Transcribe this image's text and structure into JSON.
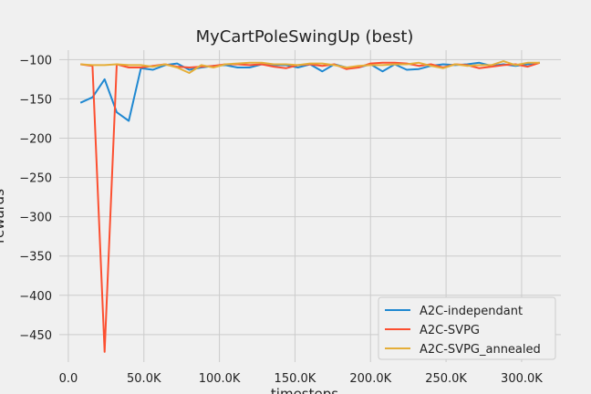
{
  "chart_data": {
    "type": "line",
    "title": "MyCartPoleSwingUp (best)",
    "xlabel": "timesteps",
    "ylabel": "rewards",
    "xlim": [
      -6000,
      326000
    ],
    "ylim": [
      -485,
      -88
    ],
    "xticks": [
      0,
      50000,
      100000,
      150000,
      200000,
      250000,
      300000
    ],
    "xtick_labels": [
      "0.0",
      "50.0K",
      "100.0K",
      "150.0K",
      "200.0K",
      "250.0K",
      "300.0K"
    ],
    "yticks": [
      -100,
      -150,
      -200,
      -250,
      -300,
      -350,
      -400,
      -450
    ],
    "ytick_labels": [
      "−100",
      "−150",
      "−200",
      "−250",
      "−300",
      "−350",
      "−400",
      "−450"
    ],
    "grid": true,
    "legend_position": "bottom-right",
    "series": [
      {
        "name": "A2C-independant",
        "color": "#1f88d1",
        "x": [
          8000,
          16000,
          24000,
          32000,
          40000,
          48000,
          56000,
          64000,
          72000,
          80000,
          88000,
          96000,
          104000,
          112000,
          120000,
          128000,
          136000,
          144000,
          152000,
          160000,
          168000,
          176000,
          184000,
          192000,
          200000,
          208000,
          216000,
          224000,
          232000,
          240000,
          248000,
          256000,
          264000,
          272000,
          280000,
          288000,
          296000,
          304000,
          312000
        ],
        "y": [
          -155,
          -148,
          -125,
          -167,
          -178,
          -111,
          -113,
          -107,
          -105,
          -113,
          -110,
          -108,
          -107,
          -110,
          -110,
          -106,
          -107,
          -107,
          -110,
          -106,
          -115,
          -106,
          -110,
          -110,
          -106,
          -115,
          -106,
          -113,
          -112,
          -108,
          -106,
          -107,
          -106,
          -104,
          -108,
          -106,
          -108,
          -106,
          -104
        ]
      },
      {
        "name": "A2C-SVPG",
        "color": "#fc4f30",
        "x": [
          8000,
          16000,
          24000,
          32000,
          40000,
          48000,
          56000,
          64000,
          72000,
          80000,
          88000,
          96000,
          104000,
          112000,
          120000,
          128000,
          136000,
          144000,
          152000,
          160000,
          168000,
          176000,
          184000,
          192000,
          200000,
          208000,
          216000,
          224000,
          232000,
          240000,
          248000,
          256000,
          264000,
          272000,
          280000,
          288000,
          296000,
          304000,
          312000
        ],
        "y": [
          -106,
          -108,
          -472,
          -106,
          -110,
          -110,
          -108,
          -106,
          -109,
          -110,
          -109,
          -108,
          -106,
          -106,
          -107,
          -106,
          -109,
          -111,
          -107,
          -106,
          -108,
          -106,
          -112,
          -110,
          -105,
          -104,
          -104,
          -105,
          -108,
          -106,
          -110,
          -106,
          -107,
          -111,
          -109,
          -107,
          -106,
          -109,
          -104
        ]
      },
      {
        "name": "A2C-SVPG_annealed",
        "color": "#e5ae38",
        "x": [
          8000,
          16000,
          24000,
          32000,
          40000,
          48000,
          56000,
          64000,
          72000,
          80000,
          88000,
          96000,
          104000,
          112000,
          120000,
          128000,
          136000,
          144000,
          152000,
          160000,
          168000,
          176000,
          184000,
          192000,
          200000,
          208000,
          216000,
          224000,
          232000,
          240000,
          248000,
          256000,
          264000,
          272000,
          280000,
          288000,
          296000,
          304000,
          312000
        ],
        "y": [
          -106,
          -107,
          -107,
          -106,
          -107,
          -107,
          -109,
          -106,
          -110,
          -117,
          -107,
          -110,
          -106,
          -105,
          -104,
          -104,
          -106,
          -106,
          -107,
          -105,
          -105,
          -107,
          -110,
          -108,
          -107,
          -107,
          -106,
          -106,
          -104,
          -108,
          -111,
          -106,
          -108,
          -107,
          -107,
          -102,
          -107,
          -104,
          -104
        ]
      }
    ]
  }
}
